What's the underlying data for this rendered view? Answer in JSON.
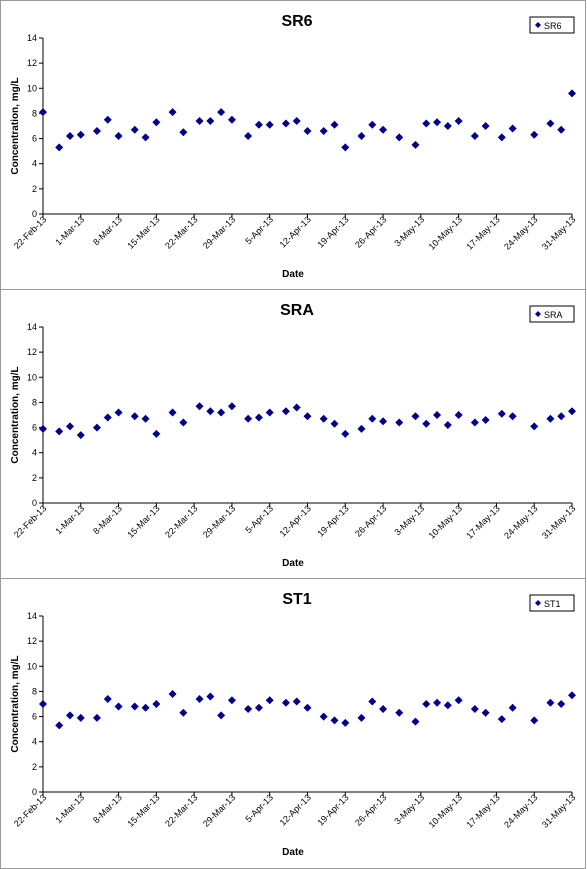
{
  "chart_data": [
    {
      "type": "scatter",
      "title": "SR6",
      "xlabel": "Date",
      "ylabel": "Concentration, mg/L",
      "ylim": [
        0,
        14
      ],
      "yticks": [
        "0",
        "2",
        "4",
        "6",
        "8",
        "10",
        "12",
        "14"
      ],
      "xticks": [
        "22-Feb-13",
        "1-Mar-13",
        "8-Mar-13",
        "15-Mar-13",
        "22-Mar-13",
        "29-Mar-13",
        "5-Apr-13",
        "12-Apr-13",
        "19-Apr-13",
        "26-Apr-13",
        "3-May-13",
        "10-May-13",
        "17-May-13",
        "24-May-13",
        "31-May-13"
      ],
      "legend": "top-right",
      "marker_color": "#00008b",
      "series": [
        {
          "name": "SR6",
          "points": [
            [
              "2013-02-22",
              8.1
            ],
            [
              "2013-02-25",
              5.3
            ],
            [
              "2013-02-27",
              6.2
            ],
            [
              "2013-03-01",
              6.3
            ],
            [
              "2013-03-04",
              6.6
            ],
            [
              "2013-03-06",
              7.5
            ],
            [
              "2013-03-08",
              6.2
            ],
            [
              "2013-03-11",
              6.7
            ],
            [
              "2013-03-13",
              6.1
            ],
            [
              "2013-03-15",
              7.3
            ],
            [
              "2013-03-18",
              8.1
            ],
            [
              "2013-03-20",
              6.5
            ],
            [
              "2013-03-23",
              7.4
            ],
            [
              "2013-03-25",
              7.4
            ],
            [
              "2013-03-27",
              8.1
            ],
            [
              "2013-03-29",
              7.5
            ],
            [
              "2013-04-01",
              6.2
            ],
            [
              "2013-04-03",
              7.1
            ],
            [
              "2013-04-05",
              7.1
            ],
            [
              "2013-04-08",
              7.2
            ],
            [
              "2013-04-10",
              7.4
            ],
            [
              "2013-04-12",
              6.6
            ],
            [
              "2013-04-15",
              6.6
            ],
            [
              "2013-04-17",
              7.1
            ],
            [
              "2013-04-19",
              5.3
            ],
            [
              "2013-04-22",
              6.2
            ],
            [
              "2013-04-24",
              7.1
            ],
            [
              "2013-04-26",
              6.7
            ],
            [
              "2013-04-29",
              6.1
            ],
            [
              "2013-05-02",
              5.5
            ],
            [
              "2013-05-04",
              7.2
            ],
            [
              "2013-05-06",
              7.3
            ],
            [
              "2013-05-08",
              7.0
            ],
            [
              "2013-05-10",
              7.4
            ],
            [
              "2013-05-13",
              6.2
            ],
            [
              "2013-05-15",
              7.0
            ],
            [
              "2013-05-18",
              6.1
            ],
            [
              "2013-05-20",
              6.8
            ],
            [
              "2013-05-24",
              6.3
            ],
            [
              "2013-05-27",
              7.2
            ],
            [
              "2013-05-29",
              6.7
            ],
            [
              "2013-05-31",
              9.6
            ]
          ]
        }
      ]
    },
    {
      "type": "scatter",
      "title": "SRA",
      "xlabel": "Date",
      "ylabel": "Concentration, mg/L",
      "ylim": [
        0,
        14
      ],
      "yticks": [
        "0",
        "2",
        "4",
        "6",
        "8",
        "10",
        "12",
        "14"
      ],
      "xticks": [
        "22-Feb-13",
        "1-Mar-13",
        "8-Mar-13",
        "15-Mar-13",
        "22-Mar-13",
        "29-Mar-13",
        "5-Apr-13",
        "12-Apr-13",
        "19-Apr-13",
        "26-Apr-13",
        "3-May-13",
        "10-May-13",
        "17-May-13",
        "24-May-13",
        "31-May-13"
      ],
      "legend": "top-right",
      "marker_color": "#00008b",
      "series": [
        {
          "name": "SRA",
          "points": [
            [
              "2013-02-22",
              5.9
            ],
            [
              "2013-02-25",
              5.7
            ],
            [
              "2013-02-27",
              6.1
            ],
            [
              "2013-03-01",
              5.4
            ],
            [
              "2013-03-04",
              6.0
            ],
            [
              "2013-03-06",
              6.8
            ],
            [
              "2013-03-08",
              7.2
            ],
            [
              "2013-03-11",
              6.9
            ],
            [
              "2013-03-13",
              6.7
            ],
            [
              "2013-03-15",
              5.5
            ],
            [
              "2013-03-18",
              7.2
            ],
            [
              "2013-03-20",
              6.4
            ],
            [
              "2013-03-23",
              7.7
            ],
            [
              "2013-03-25",
              7.3
            ],
            [
              "2013-03-27",
              7.2
            ],
            [
              "2013-03-29",
              7.7
            ],
            [
              "2013-04-01",
              6.7
            ],
            [
              "2013-04-03",
              6.8
            ],
            [
              "2013-04-05",
              7.2
            ],
            [
              "2013-04-08",
              7.3
            ],
            [
              "2013-04-10",
              7.6
            ],
            [
              "2013-04-12",
              6.9
            ],
            [
              "2013-04-15",
              6.7
            ],
            [
              "2013-04-17",
              6.3
            ],
            [
              "2013-04-19",
              5.5
            ],
            [
              "2013-04-22",
              5.9
            ],
            [
              "2013-04-24",
              6.7
            ],
            [
              "2013-04-26",
              6.5
            ],
            [
              "2013-04-29",
              6.4
            ],
            [
              "2013-05-02",
              6.9
            ],
            [
              "2013-05-04",
              6.3
            ],
            [
              "2013-05-06",
              7.0
            ],
            [
              "2013-05-08",
              6.2
            ],
            [
              "2013-05-10",
              7.0
            ],
            [
              "2013-05-13",
              6.4
            ],
            [
              "2013-05-15",
              6.6
            ],
            [
              "2013-05-18",
              7.1
            ],
            [
              "2013-05-20",
              6.9
            ],
            [
              "2013-05-24",
              6.1
            ],
            [
              "2013-05-27",
              6.7
            ],
            [
              "2013-05-29",
              6.9
            ],
            [
              "2013-05-31",
              7.3
            ]
          ]
        }
      ]
    },
    {
      "type": "scatter",
      "title": "ST1",
      "xlabel": "Date",
      "ylabel": "Concentration, mg/L",
      "ylim": [
        0,
        14
      ],
      "yticks": [
        "0",
        "2",
        "4",
        "6",
        "8",
        "10",
        "12",
        "14"
      ],
      "xticks": [
        "22-Feb-13",
        "1-Mar-13",
        "8-Mar-13",
        "15-Mar-13",
        "22-Mar-13",
        "29-Mar-13",
        "5-Apr-13",
        "12-Apr-13",
        "19-Apr-13",
        "26-Apr-13",
        "3-May-13",
        "10-May-13",
        "17-May-13",
        "24-May-13",
        "31-May-13"
      ],
      "legend": "top-right",
      "marker_color": "#00008b",
      "series": [
        {
          "name": "ST1",
          "points": [
            [
              "2013-02-22",
              7.0
            ],
            [
              "2013-02-25",
              5.3
            ],
            [
              "2013-02-27",
              6.1
            ],
            [
              "2013-03-01",
              5.9
            ],
            [
              "2013-03-04",
              5.9
            ],
            [
              "2013-03-06",
              7.4
            ],
            [
              "2013-03-08",
              6.8
            ],
            [
              "2013-03-11",
              6.8
            ],
            [
              "2013-03-13",
              6.7
            ],
            [
              "2013-03-15",
              7.0
            ],
            [
              "2013-03-18",
              7.8
            ],
            [
              "2013-03-20",
              6.3
            ],
            [
              "2013-03-23",
              7.4
            ],
            [
              "2013-03-25",
              7.6
            ],
            [
              "2013-03-27",
              6.1
            ],
            [
              "2013-03-29",
              7.3
            ],
            [
              "2013-04-01",
              6.6
            ],
            [
              "2013-04-03",
              6.7
            ],
            [
              "2013-04-05",
              7.3
            ],
            [
              "2013-04-08",
              7.1
            ],
            [
              "2013-04-10",
              7.2
            ],
            [
              "2013-04-12",
              6.7
            ],
            [
              "2013-04-15",
              6.0
            ],
            [
              "2013-04-17",
              5.7
            ],
            [
              "2013-04-19",
              5.5
            ],
            [
              "2013-04-22",
              5.9
            ],
            [
              "2013-04-24",
              7.2
            ],
            [
              "2013-04-26",
              6.6
            ],
            [
              "2013-04-29",
              6.3
            ],
            [
              "2013-05-02",
              5.6
            ],
            [
              "2013-05-04",
              7.0
            ],
            [
              "2013-05-06",
              7.1
            ],
            [
              "2013-05-08",
              6.9
            ],
            [
              "2013-05-10",
              7.3
            ],
            [
              "2013-05-13",
              6.6
            ],
            [
              "2013-05-15",
              6.3
            ],
            [
              "2013-05-18",
              5.8
            ],
            [
              "2013-05-20",
              6.7
            ],
            [
              "2013-05-24",
              5.7
            ],
            [
              "2013-05-27",
              7.1
            ],
            [
              "2013-05-29",
              7.0
            ],
            [
              "2013-05-31",
              7.7
            ]
          ]
        }
      ]
    }
  ]
}
